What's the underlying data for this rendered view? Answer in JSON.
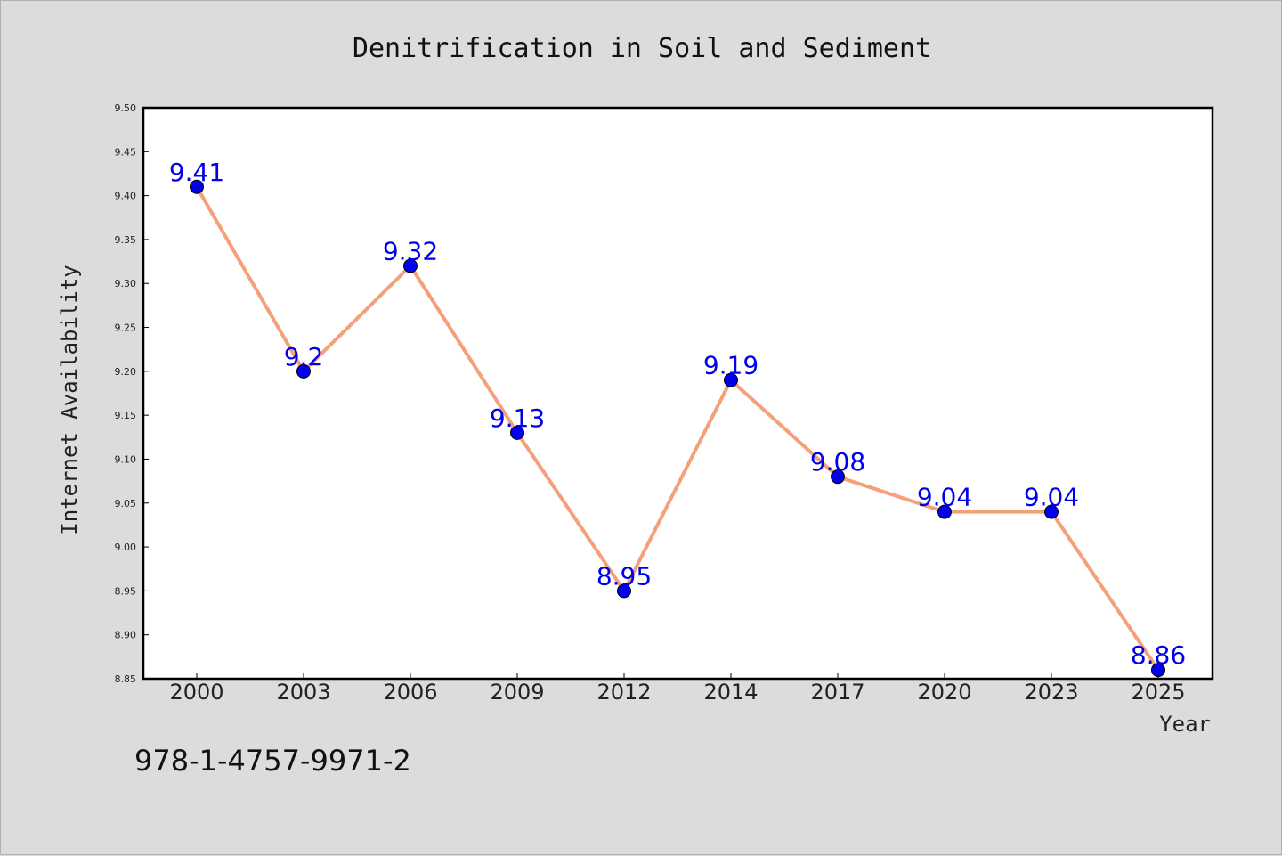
{
  "chart_data": {
    "type": "line",
    "title": "Denitrification in Soil and Sediment",
    "xlabel": "Year",
    "ylabel": "Internet Availability",
    "categories": [
      "2000",
      "2003",
      "2006",
      "2009",
      "2012",
      "2014",
      "2017",
      "2020",
      "2023",
      "2025"
    ],
    "series": [
      {
        "values": [
          9.41,
          9.2,
          9.32,
          9.13,
          8.95,
          9.19,
          9.08,
          9.04,
          9.04,
          8.86
        ],
        "labels": [
          "9.41",
          "9.2",
          "9.32",
          "9.13",
          "8.95",
          "9.19",
          "9.08",
          "9.04",
          "9.04",
          "8.86"
        ],
        "line_color": "#f4a07a",
        "marker_color": "#0000ee",
        "label_color": "#0000ee"
      }
    ],
    "ylim": [
      8.85,
      9.5
    ],
    "yticks": [
      "8.85",
      "8.90",
      "8.95",
      "9.00",
      "9.05",
      "9.10",
      "9.15",
      "9.20",
      "9.25",
      "9.30",
      "9.35",
      "9.40",
      "9.45",
      "9.50"
    ],
    "grid": false,
    "legend": "none"
  },
  "annotation": {
    "isbn": "978-1-4757-9971-2"
  },
  "colors": {
    "background": "#dcdcdc",
    "plot_area": "#ffffff",
    "axis": "#000000"
  }
}
